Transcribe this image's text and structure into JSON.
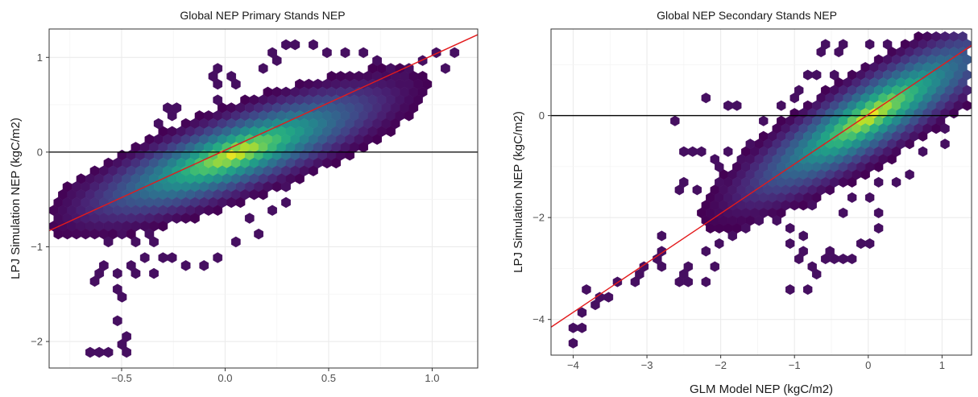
{
  "chart_data": [
    {
      "type": "hexbin",
      "title": "Global NEP Primary Stands NEP",
      "xlabel": "",
      "ylabel": "LPJ Simulation NEP (kgC/m2)",
      "xlim": [
        -0.85,
        1.22
      ],
      "ylim": [
        -2.28,
        1.3
      ],
      "xticks": [
        -0.5,
        0.0,
        0.5,
        1.0
      ],
      "xtick_labels": [
        "−0.5",
        "0.0",
        "0.5",
        "1.0"
      ],
      "yticks": [
        -2,
        -1,
        0,
        1
      ],
      "ytick_labels": [
        "−2",
        "−1",
        "0",
        "1"
      ],
      "grid": true,
      "hline_y": 0,
      "fit_line": {
        "slope": 1.0,
        "intercept": 0.02
      },
      "color_scale": "viridis",
      "bin_width_x": 0.044,
      "density": {
        "center": [
          0.05,
          -0.02
        ],
        "sd_along": 0.33,
        "sd_across": 0.11,
        "direction": [
          0.4,
          0.38
        ],
        "max_radius": 3.8
      },
      "hex_cells": [
        [
          -0.76,
          -0.49
        ],
        [
          -0.74,
          -0.56
        ],
        [
          -0.66,
          -0.66
        ],
        [
          -0.64,
          -0.77
        ],
        [
          -0.62,
          -1.37
        ],
        [
          -0.59,
          -1.28
        ],
        [
          -0.57,
          -1.18
        ],
        [
          -0.54,
          -1.28
        ],
        [
          -0.51,
          -1.47
        ],
        [
          -0.49,
          -1.56
        ],
        [
          -0.51,
          -1.74
        ],
        [
          -0.49,
          -1.93
        ],
        [
          -0.51,
          -2.02
        ],
        [
          -0.49,
          -2.11
        ],
        [
          -0.55,
          -2.11
        ],
        [
          -0.62,
          -2.11
        ],
        [
          -0.67,
          -2.11
        ],
        [
          -0.45,
          -0.25
        ],
        [
          -0.35,
          -0.04
        ],
        [
          -0.31,
          0.3
        ],
        [
          -0.27,
          0.39
        ],
        [
          -0.24,
          0.48
        ],
        [
          -0.3,
          0.48
        ],
        [
          -0.04,
          0.58
        ],
        [
          -0.02,
          0.68
        ],
        [
          0.05,
          0.7
        ],
        [
          0.05,
          0.78
        ],
        [
          -0.07,
          0.78
        ],
        [
          -0.02,
          0.88
        ],
        [
          0.18,
          0.88
        ],
        [
          0.23,
          0.98
        ],
        [
          0.24,
          1.07
        ],
        [
          0.3,
          1.12
        ],
        [
          0.35,
          1.17
        ],
        [
          0.42,
          1.17
        ],
        [
          0.5,
          1.07
        ],
        [
          0.59,
          1.07
        ],
        [
          0.67,
          1.02
        ],
        [
          0.75,
          0.98
        ],
        [
          0.8,
          0.88
        ],
        [
          0.74,
          0.8
        ],
        [
          0.76,
          0.7
        ],
        [
          0.84,
          0.8
        ],
        [
          0.9,
          0.88
        ],
        [
          0.94,
          0.98
        ],
        [
          1.03,
          1.07
        ],
        [
          1.1,
          1.07
        ],
        [
          1.05,
          0.88
        ],
        [
          0.9,
          0.7
        ],
        [
          0.85,
          0.78
        ],
        [
          0.54,
          0.3
        ],
        [
          0.59,
          0.4
        ],
        [
          0.4,
          0.1
        ],
        [
          0.36,
          -0.04
        ],
        [
          0.3,
          -0.34
        ],
        [
          0.28,
          -0.51
        ],
        [
          0.22,
          -0.6
        ],
        [
          0.1,
          -0.68
        ],
        [
          0.14,
          -0.84
        ],
        [
          0.04,
          -0.96
        ],
        [
          -0.05,
          -1.1
        ],
        [
          -0.12,
          -1.18
        ],
        [
          -0.2,
          -1.2
        ],
        [
          -0.25,
          -1.08
        ],
        [
          -0.32,
          -1.12
        ],
        [
          -0.4,
          -1.12
        ],
        [
          -0.45,
          -1.2
        ],
        [
          -0.35,
          -0.96
        ],
        [
          -0.38,
          -0.84
        ],
        [
          -0.42,
          -0.94
        ],
        [
          -0.48,
          -0.86
        ],
        [
          -0.36,
          -1.28
        ],
        [
          -0.45,
          -1.27
        ],
        [
          -0.56,
          -0.96
        ],
        [
          -0.52,
          -0.9
        ],
        [
          -0.6,
          -0.68
        ],
        [
          -0.7,
          -0.4
        ],
        [
          -0.66,
          -0.3
        ],
        [
          0.14,
          -0.28
        ],
        [
          0.24,
          -0.12
        ],
        [
          0.1,
          0.02
        ],
        [
          0.16,
          0.12
        ],
        [
          0.0,
          0.14
        ],
        [
          -0.08,
          0.24
        ],
        [
          0.06,
          0.3
        ],
        [
          0.18,
          0.3
        ],
        [
          0.28,
          0.22
        ],
        [
          0.3,
          0.4
        ],
        [
          0.42,
          0.4
        ],
        [
          0.36,
          0.48
        ],
        [
          -0.18,
          -0.1
        ],
        [
          -0.12,
          -0.22
        ],
        [
          -0.22,
          -0.34
        ],
        [
          -0.28,
          -0.22
        ],
        [
          -0.32,
          -0.46
        ],
        [
          -0.12,
          -0.46
        ],
        [
          -0.04,
          -0.34
        ],
        [
          -0.08,
          0.02
        ],
        [
          -0.2,
          0.12
        ],
        [
          -0.14,
          0.34
        ]
      ]
    },
    {
      "type": "hexbin",
      "title": "Global NEP Secondary Stands NEP",
      "xlabel": "GLM Model NEP (kgC/m2)",
      "ylabel": "LPJ Simulation NEP (kgC/m2)",
      "xlim": [
        -4.3,
        1.4
      ],
      "ylim": [
        -4.7,
        1.7
      ],
      "xticks": [
        -4,
        -3,
        -2,
        -1,
        0,
        1
      ],
      "xtick_labels": [
        "−4",
        "−3",
        "−2",
        "−1",
        "0",
        "1"
      ],
      "yticks": [
        -4,
        -2,
        0
      ],
      "ytick_labels": [
        "−4",
        "−2",
        "0"
      ],
      "grid": true,
      "hline_y": 0,
      "fit_line": {
        "slope": 0.97,
        "intercept": 0.02
      },
      "color_scale": "viridis",
      "bin_width_x": 0.12,
      "density": {
        "center": [
          0.05,
          0.0
        ],
        "sd_along": 0.85,
        "sd_across": 0.22,
        "direction": [
          0.65,
          0.62
        ],
        "max_radius": 3.7
      },
      "hex_cells": [
        [
          -4.0,
          -4.4
        ],
        [
          -4.05,
          -4.2
        ],
        [
          -3.85,
          -4.1
        ],
        [
          -3.9,
          -3.9
        ],
        [
          -3.75,
          -3.75
        ],
        [
          -3.8,
          -3.45
        ],
        [
          -3.6,
          -3.55
        ],
        [
          -3.35,
          -3.3
        ],
        [
          -3.1,
          -3.05
        ],
        [
          -2.85,
          -2.4
        ],
        [
          -2.8,
          -2.65
        ],
        [
          -2.75,
          -2.95
        ],
        [
          -2.55,
          -3.1
        ],
        [
          -2.4,
          -3.2
        ],
        [
          -2.25,
          -3.2
        ],
        [
          -2.1,
          -3.0
        ],
        [
          -2.6,
          -3.2
        ],
        [
          -2.4,
          -3.0
        ],
        [
          -2.15,
          -2.6
        ],
        [
          -2.0,
          -2.55
        ],
        [
          -1.85,
          -2.4
        ],
        [
          -1.7,
          -2.2
        ],
        [
          -1.5,
          -2.0
        ],
        [
          -1.2,
          -2.0
        ],
        [
          -1.0,
          -2.2
        ],
        [
          -0.85,
          -2.4
        ],
        [
          -0.9,
          -2.65
        ],
        [
          -0.95,
          -2.85
        ],
        [
          -0.8,
          -3.0
        ],
        [
          -0.7,
          -3.1
        ],
        [
          -0.55,
          -2.75
        ],
        [
          -0.5,
          -2.65
        ],
        [
          -0.4,
          -2.85
        ],
        [
          -0.3,
          -2.85
        ],
        [
          -0.2,
          -2.75
        ],
        [
          -0.05,
          -2.55
        ],
        [
          0.05,
          -2.45
        ],
        [
          0.15,
          -2.15
        ],
        [
          0.0,
          -1.6
        ],
        [
          0.1,
          -1.9
        ],
        [
          -0.35,
          -1.95
        ],
        [
          -1.1,
          -2.55
        ],
        [
          -1.0,
          -3.45
        ],
        [
          -0.85,
          -3.45
        ],
        [
          -2.0,
          -0.95
        ],
        [
          -1.9,
          -0.75
        ],
        [
          -1.75,
          -0.8
        ],
        [
          -1.7,
          -1.1
        ],
        [
          -1.95,
          -1.4
        ],
        [
          -2.05,
          -1.25
        ],
        [
          -2.5,
          -0.75
        ],
        [
          -2.35,
          -0.7
        ],
        [
          -2.2,
          -0.65
        ],
        [
          -2.1,
          -0.85
        ],
        [
          -2.45,
          -1.35
        ],
        [
          -2.3,
          -1.45
        ],
        [
          -2.6,
          -1.4
        ],
        [
          -2.6,
          -0.05
        ],
        [
          -2.2,
          0.4
        ],
        [
          -1.95,
          0.25
        ],
        [
          -1.75,
          0.15
        ],
        [
          -1.45,
          -0.05
        ],
        [
          -1.2,
          0.2
        ],
        [
          -1.05,
          0.4
        ],
        [
          -0.95,
          0.55
        ],
        [
          -0.85,
          0.75
        ],
        [
          -0.7,
          0.85
        ],
        [
          -0.5,
          0.75
        ],
        [
          -0.45,
          1.2
        ],
        [
          -0.65,
          1.2
        ],
        [
          -0.55,
          1.35
        ],
        [
          -0.3,
          1.4
        ],
        [
          0.0,
          1.45
        ],
        [
          0.3,
          1.35
        ],
        [
          0.55,
          1.2
        ],
        [
          0.8,
          0.95
        ],
        [
          0.95,
          0.75
        ],
        [
          1.05,
          0.55
        ],
        [
          1.2,
          0.3
        ],
        [
          1.3,
          0.9
        ],
        [
          0.85,
          0.6
        ],
        [
          1.0,
          0.3
        ],
        [
          1.0,
          -0.2
        ],
        [
          1.1,
          -0.5
        ],
        [
          0.8,
          -0.7
        ],
        [
          0.55,
          -1.1
        ],
        [
          0.35,
          -1.35
        ],
        [
          0.1,
          -1.25
        ],
        [
          -0.55,
          -0.6
        ],
        [
          -1.3,
          -0.9
        ],
        [
          -1.5,
          -1.35
        ],
        [
          -1.25,
          -1.25
        ],
        [
          -1.45,
          -1.55
        ],
        [
          -1.55,
          -0.6
        ],
        [
          -0.5,
          -1.25
        ],
        [
          -0.7,
          -1.8
        ],
        [
          -0.25,
          -1.55
        ],
        [
          0.25,
          -0.2
        ],
        [
          0.4,
          0.4
        ],
        [
          -0.2,
          0.3
        ],
        [
          -0.4,
          -0.3
        ],
        [
          -0.7,
          -0.8
        ],
        [
          -1.0,
          -1.1
        ],
        [
          -1.3,
          -1.4
        ],
        [
          -1.6,
          -1.8
        ],
        [
          -2.8,
          -2.8
        ],
        [
          -3.0,
          -3.0
        ],
        [
          -3.2,
          -3.2
        ],
        [
          -3.5,
          -3.5
        ]
      ]
    }
  ]
}
